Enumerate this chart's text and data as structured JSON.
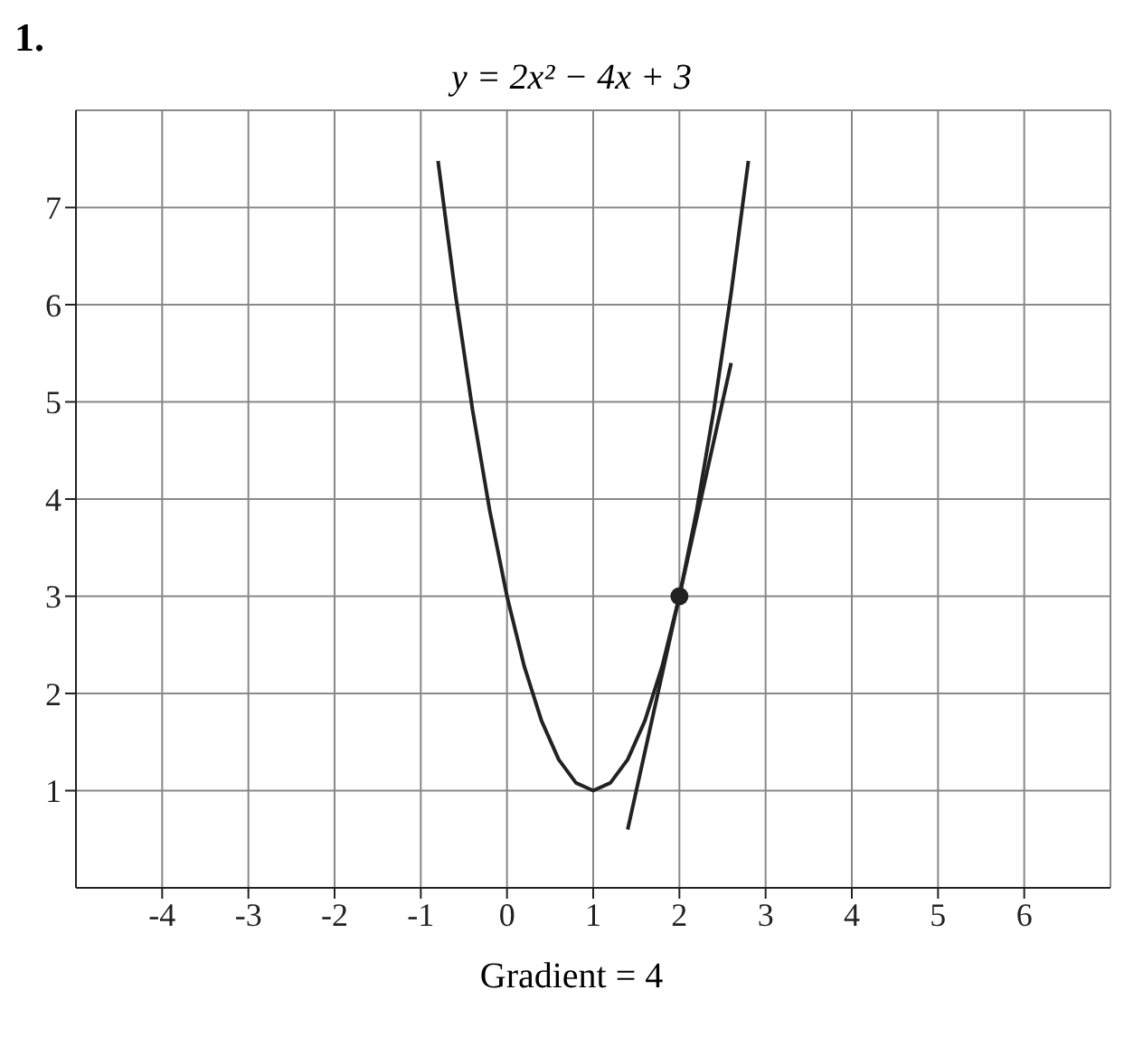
{
  "chart_data": {
    "type": "line",
    "title": "y = 2x² − 4x + 3",
    "annotations": [
      "1.",
      "Gradient = 4"
    ],
    "xlim": [
      -5,
      7
    ],
    "xticks": [
      -4,
      -3,
      -2,
      -1,
      0,
      1,
      2,
      3,
      4,
      5,
      6
    ],
    "ylim": [
      0,
      8
    ],
    "yticks": [
      1,
      2,
      3,
      4,
      5,
      6,
      7
    ],
    "grid": true,
    "line_style": "solid",
    "series": [
      {
        "color": "#222222",
        "marker": "none",
        "x": [
          -0.8,
          -0.6,
          -0.4,
          -0.2,
          0,
          0.2,
          0.4,
          0.6,
          0.8,
          1,
          1.2,
          1.4,
          1.6,
          1.8,
          2,
          2.2,
          2.4,
          2.6,
          2.8
        ],
        "values": [
          7.48,
          6.12,
          4.92,
          3.88,
          3,
          2.28,
          1.72,
          1.32,
          1.08,
          1,
          1.08,
          1.32,
          1.72,
          2.28,
          3,
          3.88,
          4.92,
          6.12,
          7.48
        ]
      },
      {
        "color": "#222222",
        "marker": "none",
        "x": [
          1.4,
          2.6
        ],
        "values": [
          0.6,
          5.4
        ]
      },
      {
        "type": "scatter",
        "color": "#222222",
        "marker": "circle",
        "x": [
          2
        ],
        "values": [
          3
        ]
      }
    ]
  }
}
